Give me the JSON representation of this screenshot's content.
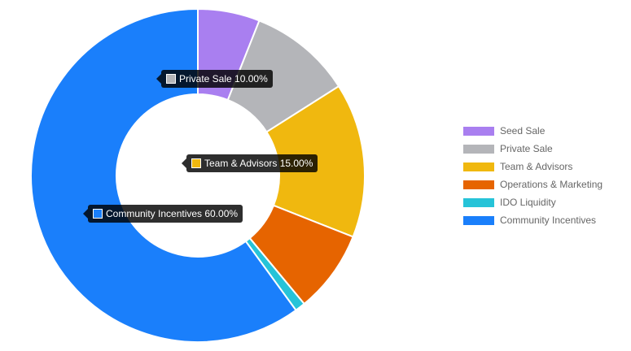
{
  "chart_data": {
    "type": "pie",
    "variant": "doughnut",
    "categories": [
      "Seed Sale",
      "Private Sale",
      "Team & Advisors",
      "Operations & Marketing",
      "IDO Liquidity",
      "Community Incentives"
    ],
    "values": [
      6,
      10,
      15,
      8,
      1,
      60
    ],
    "unit": "%",
    "colors": [
      "#a97ff0",
      "#b4b5b9",
      "#f0b80f",
      "#e66400",
      "#26c3d8",
      "#1a7ffb"
    ],
    "legend_position": "right",
    "tooltips": [
      {
        "label": "Private Sale 10.00%",
        "slice": 1
      },
      {
        "label": "Team & Advisors 15.00%",
        "slice": 2
      },
      {
        "label": "Community Incentives 60.00%",
        "slice": 5
      }
    ]
  }
}
